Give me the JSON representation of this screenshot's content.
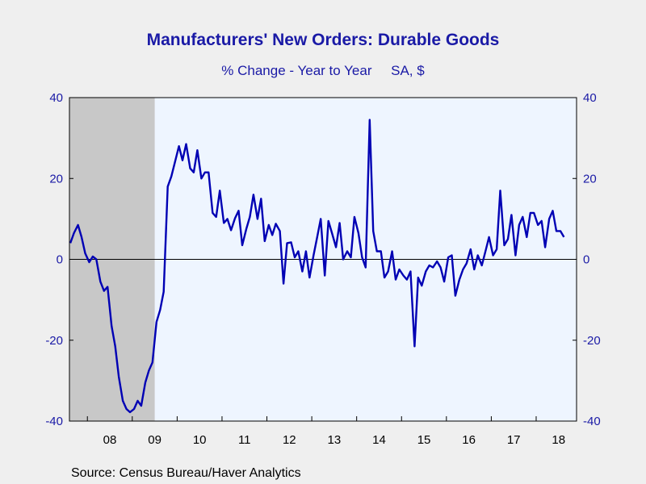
{
  "chart_data": {
    "type": "line",
    "title": "Manufacturers' New Orders: Durable Goods",
    "subtitle_left": "% Change - Year to Year",
    "subtitle_right": "SA, $",
    "source": "Source:  Census Bureau/Haver Analytics",
    "ylim": [
      -40,
      40
    ],
    "yticks": [
      -40,
      -20,
      0,
      20,
      40
    ],
    "ytick_labels": [
      "-40",
      "-20",
      "0",
      "20",
      "40"
    ],
    "x_range": [
      2007.6,
      2018.9
    ],
    "xtick_labels": [
      "08",
      "09",
      "10",
      "11",
      "12",
      "13",
      "14",
      "15",
      "16",
      "17",
      "18"
    ],
    "recession": [
      2007.6,
      2009.5
    ],
    "colors": {
      "line": "#0000b4",
      "text": "#1a1aa6",
      "recession": "#c8c8c8",
      "plot_bg": "#eef5ff",
      "page_bg": "#efefef"
    },
    "grid": false,
    "series": [
      {
        "values": [
          [
            2007.62,
            4.0
          ],
          [
            2007.7,
            6.5
          ],
          [
            2007.79,
            8.5
          ],
          [
            2007.87,
            5.5
          ],
          [
            2007.95,
            1.5
          ],
          [
            2008.04,
            -0.7
          ],
          [
            2008.12,
            0.7
          ],
          [
            2008.2,
            0.0
          ],
          [
            2008.29,
            -5.5
          ],
          [
            2008.37,
            -7.8
          ],
          [
            2008.45,
            -6.8
          ],
          [
            2008.54,
            -16.5
          ],
          [
            2008.62,
            -21.5
          ],
          [
            2008.7,
            -29.0
          ],
          [
            2008.79,
            -35.0
          ],
          [
            2008.87,
            -37.0
          ],
          [
            2008.95,
            -37.8
          ],
          [
            2009.04,
            -37.0
          ],
          [
            2009.12,
            -35.0
          ],
          [
            2009.2,
            -36.2
          ],
          [
            2009.29,
            -30.5
          ],
          [
            2009.37,
            -27.5
          ],
          [
            2009.45,
            -25.5
          ],
          [
            2009.54,
            -15.5
          ],
          [
            2009.62,
            -12.5
          ],
          [
            2009.7,
            -8.0
          ],
          [
            2009.79,
            18.0
          ],
          [
            2009.87,
            20.5
          ],
          [
            2009.95,
            24.0
          ],
          [
            2010.04,
            28.0
          ],
          [
            2010.12,
            24.5
          ],
          [
            2010.2,
            28.5
          ],
          [
            2010.29,
            22.5
          ],
          [
            2010.37,
            21.5
          ],
          [
            2010.45,
            27.0
          ],
          [
            2010.54,
            20.0
          ],
          [
            2010.62,
            21.5
          ],
          [
            2010.7,
            21.5
          ],
          [
            2010.79,
            11.5
          ],
          [
            2010.87,
            10.5
          ],
          [
            2010.95,
            17.0
          ],
          [
            2011.04,
            9.0
          ],
          [
            2011.12,
            10.0
          ],
          [
            2011.2,
            7.2
          ],
          [
            2011.29,
            10.2
          ],
          [
            2011.37,
            12.0
          ],
          [
            2011.45,
            3.5
          ],
          [
            2011.54,
            7.5
          ],
          [
            2011.62,
            10.5
          ],
          [
            2011.7,
            16.0
          ],
          [
            2011.79,
            10.0
          ],
          [
            2011.87,
            15.0
          ],
          [
            2011.95,
            4.5
          ],
          [
            2012.04,
            8.5
          ],
          [
            2012.12,
            6.0
          ],
          [
            2012.2,
            8.8
          ],
          [
            2012.29,
            7.0
          ],
          [
            2012.37,
            -6.0
          ],
          [
            2012.45,
            4.0
          ],
          [
            2012.54,
            4.2
          ],
          [
            2012.62,
            0.5
          ],
          [
            2012.7,
            2.0
          ],
          [
            2012.79,
            -3.0
          ],
          [
            2012.87,
            2.0
          ],
          [
            2012.95,
            -4.5
          ],
          [
            2013.04,
            1.0
          ],
          [
            2013.12,
            5.5
          ],
          [
            2013.2,
            10.0
          ],
          [
            2013.29,
            -4.0
          ],
          [
            2013.37,
            9.5
          ],
          [
            2013.45,
            6.5
          ],
          [
            2013.54,
            3.0
          ],
          [
            2013.62,
            9.0
          ],
          [
            2013.7,
            0.0
          ],
          [
            2013.79,
            2.0
          ],
          [
            2013.87,
            0.5
          ],
          [
            2013.95,
            10.5
          ],
          [
            2014.04,
            6.5
          ],
          [
            2014.12,
            0.5
          ],
          [
            2014.2,
            -2.0
          ],
          [
            2014.29,
            34.5
          ],
          [
            2014.37,
            7.0
          ],
          [
            2014.45,
            2.0
          ],
          [
            2014.54,
            2.0
          ],
          [
            2014.62,
            -4.5
          ],
          [
            2014.7,
            -3.0
          ],
          [
            2014.79,
            2.0
          ],
          [
            2014.87,
            -5.0
          ],
          [
            2014.95,
            -2.5
          ],
          [
            2015.04,
            -4.0
          ],
          [
            2015.12,
            -5.0
          ],
          [
            2015.2,
            -3.0
          ],
          [
            2015.29,
            -21.5
          ],
          [
            2015.37,
            -4.5
          ],
          [
            2015.45,
            -6.5
          ],
          [
            2015.54,
            -3.0
          ],
          [
            2015.62,
            -1.5
          ],
          [
            2015.7,
            -2.0
          ],
          [
            2015.79,
            -0.5
          ],
          [
            2015.87,
            -2.0
          ],
          [
            2015.95,
            -5.5
          ],
          [
            2016.04,
            0.5
          ],
          [
            2016.12,
            1.0
          ],
          [
            2016.2,
            -9.0
          ],
          [
            2016.29,
            -5.0
          ],
          [
            2016.37,
            -2.5
          ],
          [
            2016.45,
            -1.0
          ],
          [
            2016.54,
            2.5
          ],
          [
            2016.62,
            -2.5
          ],
          [
            2016.7,
            1.0
          ],
          [
            2016.79,
            -1.5
          ],
          [
            2016.87,
            2.0
          ],
          [
            2016.95,
            5.5
          ],
          [
            2017.04,
            1.0
          ],
          [
            2017.12,
            2.5
          ],
          [
            2017.2,
            17.0
          ],
          [
            2017.29,
            3.5
          ],
          [
            2017.37,
            5.0
          ],
          [
            2017.45,
            11.0
          ],
          [
            2017.54,
            1.0
          ],
          [
            2017.62,
            8.5
          ],
          [
            2017.7,
            10.5
          ],
          [
            2017.79,
            5.5
          ],
          [
            2017.87,
            11.5
          ],
          [
            2017.95,
            11.5
          ],
          [
            2018.04,
            8.5
          ],
          [
            2018.12,
            9.5
          ],
          [
            2018.2,
            3.0
          ],
          [
            2018.29,
            10.0
          ],
          [
            2018.37,
            12.0
          ],
          [
            2018.45,
            7.0
          ],
          [
            2018.54,
            7.0
          ],
          [
            2018.62,
            5.5
          ]
        ]
      }
    ]
  }
}
